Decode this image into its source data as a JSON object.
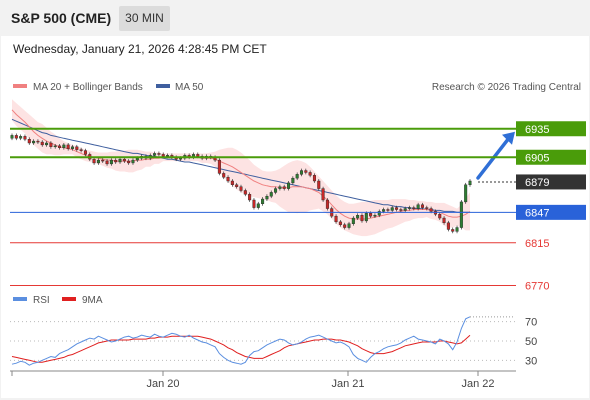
{
  "header": {
    "title": "S&P 500 (CME)",
    "interval": "30 MIN"
  },
  "datetime": "Wednesday, January 21, 2026 4:28:45 PM CET",
  "legend": {
    "bb": "MA 20 + Bollinger Bands",
    "ma50": "MA 50",
    "credit": "Research © 2026 Trading Central",
    "rsi": "RSI",
    "rsi_ma": "9MA"
  },
  "colors": {
    "resistance": "#4a9c0a",
    "pivot": "#2962d9",
    "support": "#e53935",
    "current": "#333333",
    "bollinger_fill": "#fde3e3",
    "ma20": "#f08080",
    "ma50": "#3f5f9f",
    "candle_up": "#2e7d32",
    "candle_down": "#c62828",
    "rsi": "#5b8fe0",
    "rsi_ma": "#e02020"
  },
  "chart_data": [
    {
      "type": "line",
      "subtype": "candlestick",
      "title": "S&P 500 (CME)",
      "interval": "30 MIN",
      "ylim": [
        6760,
        6960
      ],
      "x_tick_labels": [
        "Jan 20",
        "Jan 21",
        "Jan 22"
      ],
      "levels": [
        {
          "value": 6935,
          "label": "6935",
          "role": "resistance",
          "style": "box"
        },
        {
          "value": 6905,
          "label": "6905",
          "role": "resistance",
          "style": "box"
        },
        {
          "value": 6879,
          "label": "6879",
          "role": "current",
          "style": "box"
        },
        {
          "value": 6847,
          "label": "6847",
          "role": "pivot",
          "style": "box"
        },
        {
          "value": 6815,
          "label": "6815",
          "role": "support",
          "style": "text"
        },
        {
          "value": 6770,
          "label": "6770",
          "role": "support",
          "style": "text"
        }
      ],
      "close": [
        6928,
        6925,
        6927,
        6924,
        6920,
        6922,
        6921,
        6918,
        6920,
        6916,
        6917,
        6915,
        6918,
        6914,
        6916,
        6913,
        6912,
        6908,
        6903,
        6899,
        6902,
        6901,
        6898,
        6902,
        6900,
        6903,
        6901,
        6899,
        6902,
        6904,
        6906,
        6904,
        6907,
        6909,
        6908,
        6906,
        6907,
        6905,
        6903,
        6904,
        6907,
        6905,
        6908,
        6906,
        6904,
        6906,
        6905,
        6902,
        6888,
        6884,
        6880,
        6876,
        6874,
        6870,
        6866,
        6860,
        6852,
        6856,
        6861,
        6864,
        6868,
        6872,
        6874,
        6872,
        6878,
        6883,
        6887,
        6891,
        6889,
        6886,
        6880,
        6872,
        6860,
        6851,
        6843,
        6837,
        6834,
        6831,
        6835,
        6841,
        6844,
        6838,
        6846,
        6843,
        6844,
        6848,
        6850,
        6849,
        6852,
        6850,
        6849,
        6851,
        6852,
        6851,
        6855,
        6852,
        6851,
        6848,
        6845,
        6841,
        6836,
        6829,
        6827,
        6831,
        6858,
        6876,
        6880
      ],
      "ma20": [
        6955,
        6950,
        6946,
        6942,
        6937,
        6932,
        6928,
        6925,
        6922,
        6920,
        6918,
        6916,
        6915,
        6914,
        6913,
        6911,
        6909,
        6907,
        6906,
        6905,
        6904,
        6903,
        6902,
        6902,
        6901,
        6901,
        6901,
        6901,
        6901,
        6902,
        6902,
        6903,
        6903,
        6904,
        6904,
        6905,
        6905,
        6905,
        6905,
        6905,
        6905,
        6905,
        6905,
        6905,
        6904,
        6904,
        6904,
        6903,
        6901,
        6899,
        6897,
        6895,
        6892,
        6889,
        6886,
        6883,
        6880,
        6878,
        6876,
        6875,
        6874,
        6874,
        6873,
        6873,
        6873,
        6874,
        6874,
        6874,
        6873,
        6872,
        6870,
        6868,
        6864,
        6860,
        6855,
        6850,
        6846,
        6843,
        6841,
        6840,
        6840,
        6840,
        6840,
        6841,
        6842,
        6843,
        6844,
        6845,
        6846,
        6847,
        6848,
        6849,
        6849,
        6850,
        6850,
        6850,
        6850,
        6849,
        6848,
        6847,
        6845,
        6843,
        6842,
        6842,
        6843,
        6845,
        6848
      ],
      "bb_upper": [
        6966,
        6962,
        6958,
        6954,
        6950,
        6946,
        6942,
        6940,
        6936,
        6932,
        6929,
        6925,
        6922,
        6920,
        6918,
        6917,
        6915,
        6913,
        6912,
        6911,
        6910,
        6910,
        6910,
        6911,
        6911,
        6912,
        6912,
        6913,
        6913,
        6913,
        6912,
        6911,
        6911,
        6910,
        6910,
        6909,
        6909,
        6909,
        6909,
        6909,
        6909,
        6909,
        6909,
        6909,
        6909,
        6909,
        6910,
        6911,
        6913,
        6914,
        6915,
        6915,
        6913,
        6910,
        6906,
        6902,
        6897,
        6894,
        6891,
        6890,
        6890,
        6891,
        6893,
        6896,
        6899,
        6901,
        6902,
        6901,
        6899,
        6895,
        6890,
        6885,
        6880,
        6875,
        6870,
        6865,
        6861,
        6858,
        6856,
        6856,
        6857,
        6858,
        6858,
        6859,
        6860,
        6860,
        6860,
        6860,
        6861,
        6861,
        6861,
        6861,
        6860,
        6860,
        6859,
        6859,
        6858,
        6858,
        6857,
        6857,
        6857,
        6855,
        6853,
        6851,
        6855,
        6862,
        6868
      ],
      "bb_lower": [
        6944,
        6938,
        6934,
        6930,
        6924,
        6918,
        6914,
        6910,
        6908,
        6908,
        6907,
        6907,
        6908,
        6908,
        6908,
        6905,
        6903,
        6901,
        6900,
        6899,
        6898,
        6896,
        6894,
        6893,
        6891,
        6890,
        6890,
        6889,
        6889,
        6891,
        6892,
        6895,
        6895,
        6898,
        6898,
        6901,
        6901,
        6901,
        6901,
        6901,
        6901,
        6901,
        6901,
        6901,
        6899,
        6899,
        6898,
        6895,
        6889,
        6884,
        6879,
        6875,
        6871,
        6868,
        6866,
        6864,
        6863,
        6862,
        6861,
        6860,
        6858,
        6857,
        6853,
        6850,
        6847,
        6847,
        6846,
        6847,
        6847,
        6849,
        6850,
        6851,
        6848,
        6845,
        6840,
        6835,
        6831,
        6828,
        6826,
        6824,
        6823,
        6822,
        6822,
        6823,
        6824,
        6826,
        6828,
        6830,
        6831,
        6833,
        6835,
        6837,
        6838,
        6840,
        6841,
        6841,
        6842,
        6840,
        6839,
        6837,
        6833,
        6831,
        6831,
        6833,
        6831,
        6828,
        6828
      ],
      "ma50": [
        6945,
        6943,
        6941,
        6939,
        6937,
        6935,
        6933,
        6931,
        6930,
        6928,
        6927,
        6926,
        6925,
        6924,
        6923,
        6922,
        6921,
        6920,
        6919,
        6918,
        6917,
        6916,
        6915,
        6914,
        6913,
        6912,
        6911,
        6910,
        6909,
        6909,
        6908,
        6907,
        6906,
        6906,
        6905,
        6904,
        6903,
        6903,
        6902,
        6901,
        6900,
        6900,
        6899,
        6898,
        6897,
        6896,
        6895,
        6894,
        6893,
        6892,
        6891,
        6890,
        6889,
        6888,
        6887,
        6886,
        6885,
        6884,
        6883,
        6882,
        6881,
        6880,
        6879,
        6878,
        6877,
        6876,
        6875,
        6874,
        6873,
        6872,
        6871,
        6870,
        6869,
        6868,
        6867,
        6866,
        6865,
        6864,
        6863,
        6862,
        6861,
        6860,
        6859,
        6858,
        6857,
        6856,
        6855,
        6855,
        6854,
        6853,
        6853,
        6852,
        6852,
        6851,
        6851,
        6851,
        6850,
        6850,
        6849,
        6849,
        6848,
        6848,
        6848,
        6847,
        6847,
        6847,
        6847
      ]
    },
    {
      "type": "line",
      "title": "RSI",
      "ylim": [
        20,
        80
      ],
      "y_ticks": [
        30,
        50,
        70
      ],
      "series": [
        {
          "name": "RSI",
          "values": [
            26,
            27,
            29,
            28,
            25,
            27,
            28,
            30,
            32,
            34,
            33,
            37,
            39,
            41,
            44,
            47,
            49,
            51,
            53,
            52,
            55,
            53,
            51,
            49,
            50,
            52,
            54,
            55,
            53,
            54,
            56,
            55,
            54,
            57,
            55,
            54,
            56,
            58,
            57,
            55,
            54,
            56,
            53,
            51,
            49,
            48,
            46,
            44,
            37,
            33,
            30,
            28,
            27,
            26,
            28,
            35,
            39,
            40,
            43,
            46,
            48,
            50,
            52,
            51,
            48,
            46,
            47,
            49,
            52,
            54,
            55,
            56,
            54,
            52,
            50,
            48,
            49,
            47,
            44,
            36,
            32,
            30,
            28,
            33,
            37,
            39,
            42,
            44,
            45,
            46,
            48,
            51,
            53,
            55,
            52,
            51,
            50,
            49,
            47,
            52,
            50,
            47,
            41,
            49,
            63,
            73,
            75
          ]
        },
        {
          "name": "9MA",
          "values": [
            34,
            33,
            32,
            31,
            30,
            29,
            28,
            28,
            29,
            30,
            31,
            32,
            33,
            35,
            36,
            38,
            40,
            42,
            44,
            46,
            48,
            49,
            50,
            51,
            51,
            51,
            51,
            51,
            52,
            52,
            52,
            52,
            53,
            53,
            54,
            54,
            54,
            55,
            55,
            55,
            55,
            55,
            55,
            55,
            54,
            53,
            52,
            50,
            48,
            46,
            43,
            41,
            38,
            36,
            34,
            33,
            32,
            32,
            32,
            34,
            36,
            38,
            40,
            43,
            45,
            46,
            47,
            48,
            49,
            50,
            51,
            51,
            52,
            52,
            52,
            51,
            51,
            50,
            49,
            47,
            45,
            42,
            40,
            38,
            37,
            37,
            37,
            38,
            39,
            41,
            43,
            45,
            46,
            47,
            48,
            49,
            49,
            49,
            49,
            50,
            50,
            49,
            48,
            47,
            48,
            52,
            56
          ]
        }
      ]
    }
  ]
}
